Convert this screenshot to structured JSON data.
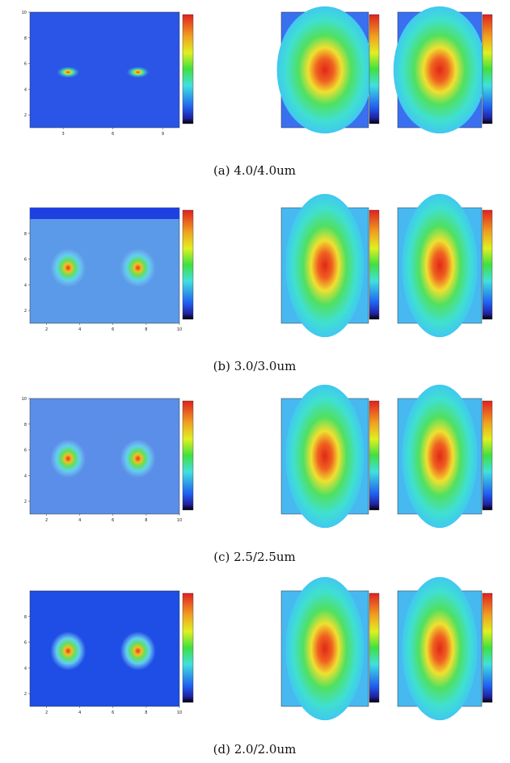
{
  "panels": [
    {
      "caption": "(a) 4.0/4.0um",
      "xlim": [
        1,
        10
      ],
      "ylim": [
        1,
        10
      ],
      "xticks": [
        3,
        6,
        9
      ],
      "yticks": [
        2,
        4,
        6,
        8,
        10
      ],
      "background": "#2b55e6",
      "style": "sharp"
    },
    {
      "caption": "(b) 3.0/3.0um",
      "xlim": [
        1,
        10
      ],
      "ylim": [
        1,
        10
      ],
      "xticks": [
        2,
        4,
        6,
        8,
        10
      ],
      "yticks": [
        2,
        4,
        6,
        8
      ],
      "background": "#5a9ae8",
      "style": "soft"
    },
    {
      "caption": "(c) 2.5/2.5um",
      "xlim": [
        1,
        10
      ],
      "ylim": [
        1,
        10
      ],
      "xticks": [
        2,
        4,
        6,
        8,
        10
      ],
      "yticks": [
        2,
        4,
        6,
        8,
        10
      ],
      "background": "#5a8ee8",
      "style": "soft"
    },
    {
      "caption": "(d) 2.0/2.0um",
      "xlim": [
        1,
        10
      ],
      "ylim": [
        1,
        10
      ],
      "xticks": [
        2,
        4,
        6,
        8,
        10
      ],
      "yticks": [
        2,
        4,
        6,
        8
      ],
      "background": "#1e4ee6",
      "style": "soft"
    }
  ]
}
